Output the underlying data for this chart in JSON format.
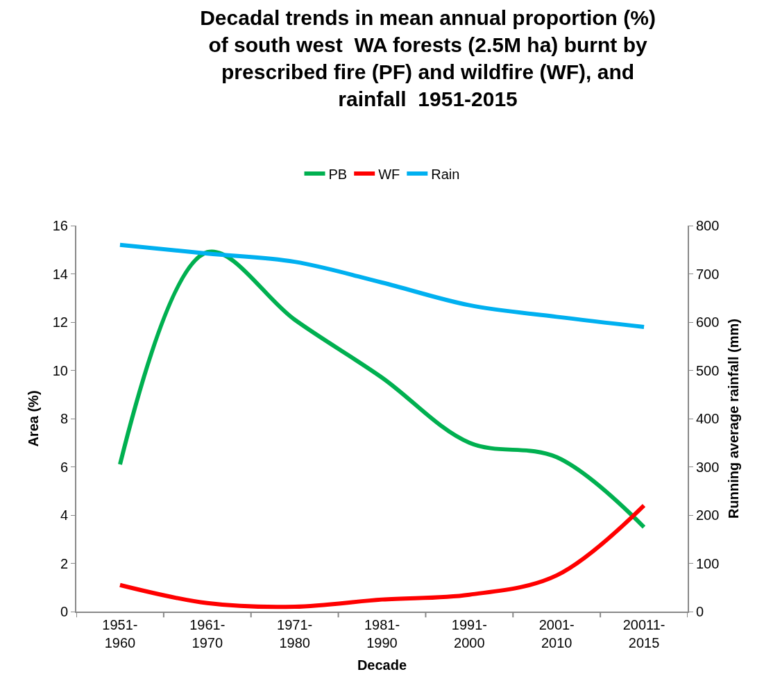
{
  "chart_data": {
    "type": "line",
    "title": "Decadal trends in mean annual proportion (%)\nof south west  WA forests (2.5M ha) burnt by\nprescribed fire (PF) and wildfire (WF), and\nrainfall  1951-2015",
    "xlabel": "Decade",
    "ylabel": "Area (%)",
    "y2label": "Running average rainfall (mm)",
    "categories": [
      "1951-\n1960",
      "1961-\n1970",
      "1971-\n1980",
      "1981-\n1990",
      "1991-\n2000",
      "2001-\n2010",
      "20011-\n2015"
    ],
    "series": [
      {
        "name": "PB",
        "color": "#00b050",
        "values": [
          6.1,
          14.9,
          12.1,
          9.7,
          7.0,
          6.4,
          3.5
        ]
      },
      {
        "name": "WF",
        "color": "#ff0000",
        "values": [
          1.1,
          0.35,
          0.2,
          0.5,
          0.7,
          1.5,
          4.4
        ]
      },
      {
        "name": "Rain",
        "color": "#00b0f0",
        "axis": "y2",
        "values": [
          760,
          742,
          725,
          682,
          635,
          611,
          590
        ]
      }
    ],
    "ylim": [
      0,
      16
    ],
    "yticks": [
      0,
      2,
      4,
      6,
      8,
      10,
      12,
      14,
      16
    ],
    "y2lim": [
      0,
      800
    ],
    "y2ticks": [
      0,
      100,
      200,
      300,
      400,
      500,
      600,
      700,
      800
    ],
    "legend": "top",
    "marker": "none",
    "line_style": "solid"
  }
}
